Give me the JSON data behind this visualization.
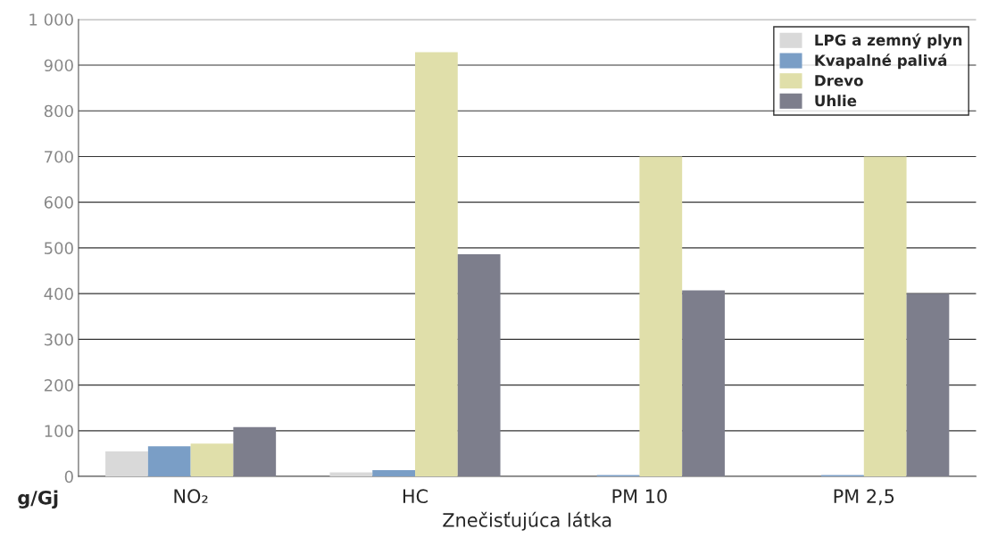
{
  "chart_data": {
    "type": "bar",
    "xlabel": "Znečisťujúca látka",
    "ylabel": "g/Gj",
    "categories": [
      "NO₂",
      "HC",
      "PM 10",
      "PM 2,5"
    ],
    "series": [
      {
        "name": "LPG a zemný plyn",
        "color": "#d9d9d9",
        "values": [
          55,
          9,
          null,
          null
        ]
      },
      {
        "name": "Kvapalné palivá",
        "color": "#7a9ec6",
        "values": [
          66,
          14,
          3,
          3
        ]
      },
      {
        "name": "Drevo",
        "color": "#e0dfaa",
        "values": [
          72,
          928,
          700,
          700
        ]
      },
      {
        "name": "Uhlie",
        "color": "#7d7e8c",
        "values": [
          108,
          486,
          407,
          400
        ]
      }
    ],
    "ylim": [
      0,
      1000
    ],
    "yticks": [
      0,
      100,
      200,
      300,
      400,
      500,
      600,
      700,
      800,
      900,
      {
        "value": 1000,
        "label": "1 000"
      }
    ],
    "grid": "y",
    "legend": "top right"
  }
}
